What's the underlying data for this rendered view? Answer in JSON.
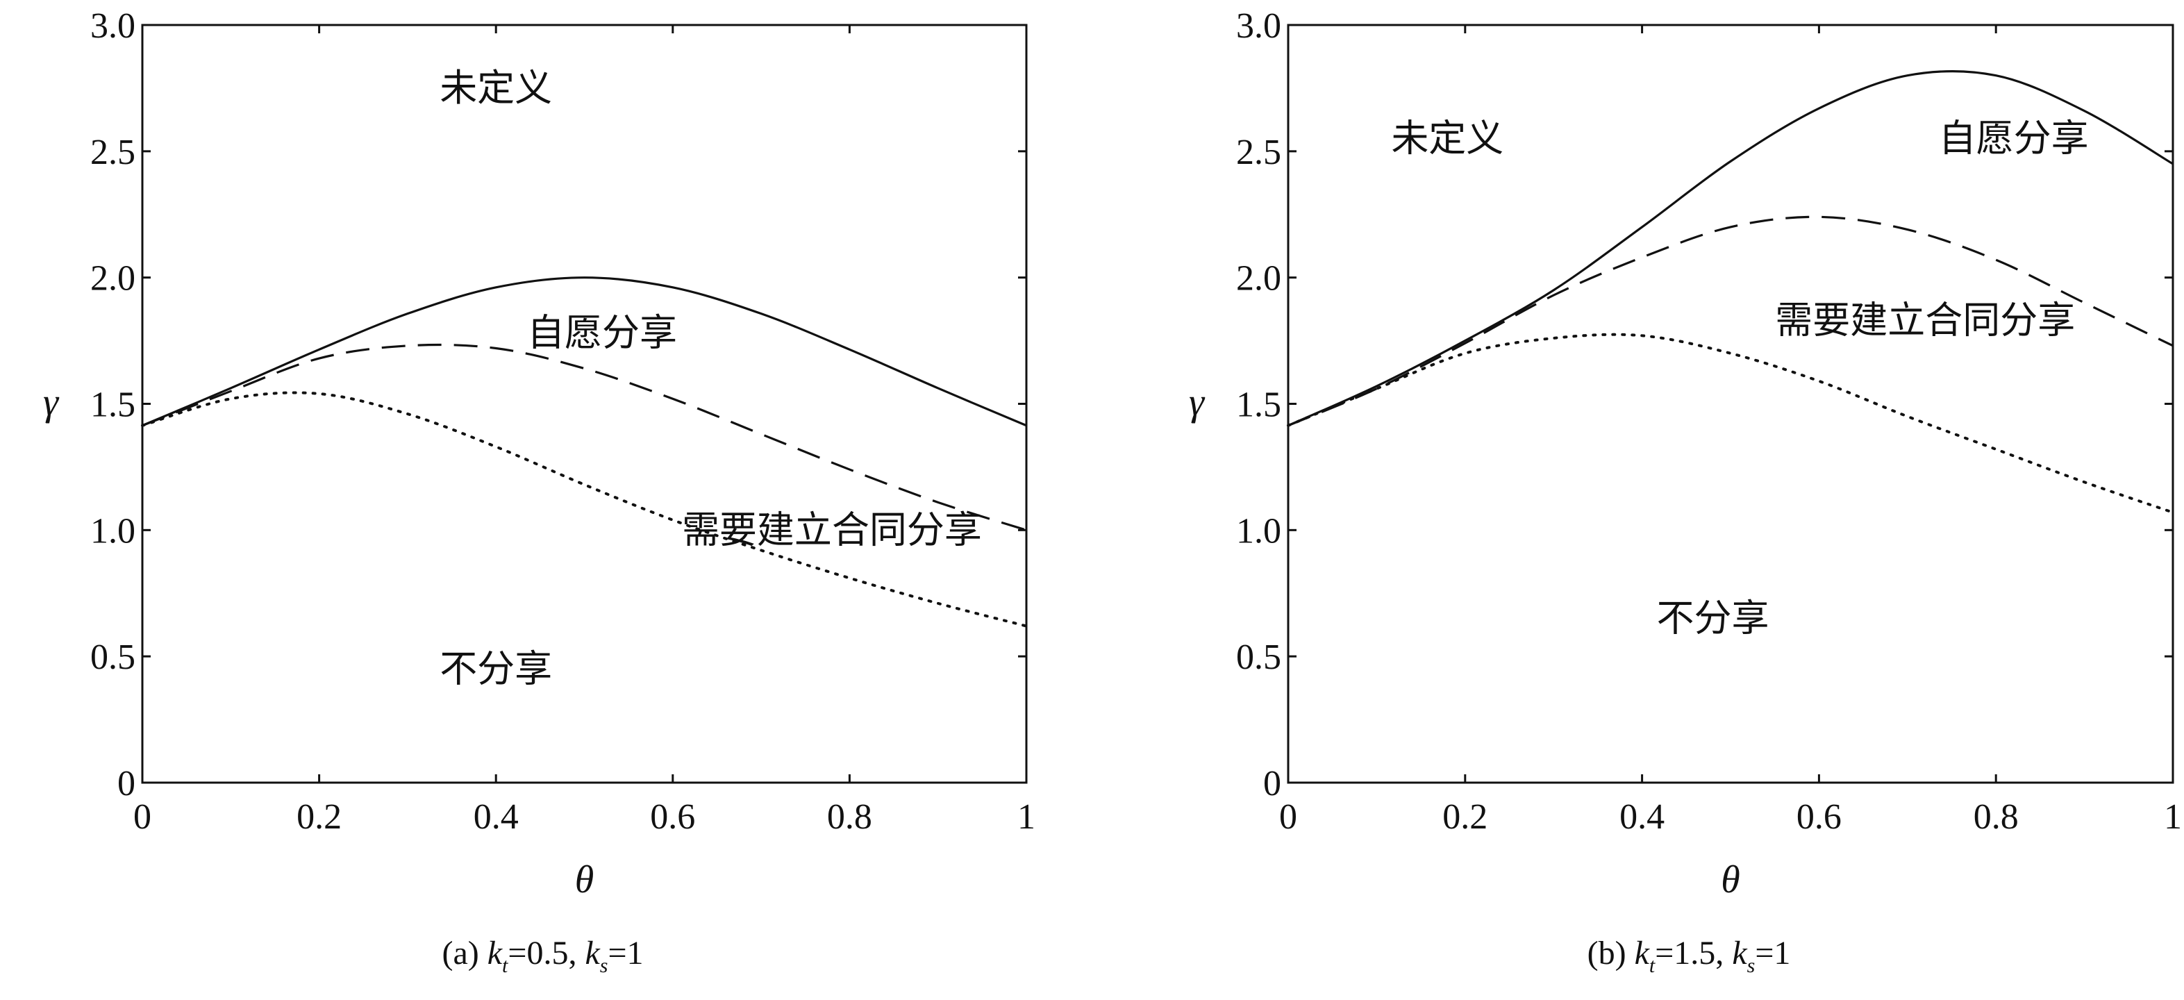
{
  "chart_data": [
    {
      "type": "line",
      "caption": {
        "prefix": "(a) ",
        "k1": "k",
        "k1_sub": "t",
        "k1_val": "=0.5, ",
        "k2": "k",
        "k2_sub": "s",
        "k2_val": "=1"
      },
      "xlabel": "θ",
      "ylabel": "γ",
      "xlim": [
        0,
        1
      ],
      "ylim": [
        0,
        3
      ],
      "xticks": [
        "0",
        "0.2",
        "0.4",
        "0.6",
        "0.8",
        "1"
      ],
      "yticks": [
        "0",
        "0.5",
        "1.0",
        "1.5",
        "2.0",
        "2.5",
        "3.0"
      ],
      "x": [
        0,
        0.1,
        0.2,
        0.3,
        0.4,
        0.5,
        0.6,
        0.7,
        0.8,
        0.9,
        1.0
      ],
      "series": [
        {
          "name": "solid",
          "style": "solid",
          "values": [
            1.414,
            1.562,
            1.715,
            1.857,
            1.961,
            2.0,
            1.961,
            1.857,
            1.715,
            1.562,
            1.414
          ]
        },
        {
          "name": "dashed",
          "style": "dashed",
          "values": [
            1.414,
            1.55,
            1.68,
            1.73,
            1.72,
            1.64,
            1.52,
            1.38,
            1.24,
            1.11,
            1.0
          ]
        },
        {
          "name": "dotted",
          "style": "dotted",
          "values": [
            1.414,
            1.52,
            1.54,
            1.46,
            1.33,
            1.18,
            1.04,
            0.92,
            0.81,
            0.71,
            0.62
          ]
        }
      ],
      "regions": [
        "未定义",
        "自愿分享",
        "需要建立合同分享",
        "不分享"
      ]
    },
    {
      "type": "line",
      "caption": {
        "prefix": "(b) ",
        "k1": "k",
        "k1_sub": "t",
        "k1_val": "=1.5, ",
        "k2": "k",
        "k2_sub": "s",
        "k2_val": "=1"
      },
      "xlabel": "θ",
      "ylabel": "γ",
      "xlim": [
        0,
        1
      ],
      "ylim": [
        0,
        3
      ],
      "xticks": [
        "0",
        "0.2",
        "0.4",
        "0.6",
        "0.8",
        "1"
      ],
      "yticks": [
        "0",
        "0.5",
        "1.0",
        "1.5",
        "2.0",
        "2.5",
        "3.0"
      ],
      "x": [
        0,
        0.1,
        0.2,
        0.3,
        0.4,
        0.5,
        0.6,
        0.7,
        0.8,
        0.9,
        1.0
      ],
      "series": [
        {
          "name": "solid",
          "style": "solid",
          "values": [
            1.414,
            1.57,
            1.75,
            1.95,
            2.2,
            2.46,
            2.67,
            2.8,
            2.8,
            2.66,
            2.45
          ]
        },
        {
          "name": "dashed",
          "style": "dashed",
          "values": [
            1.414,
            1.56,
            1.74,
            1.93,
            2.08,
            2.2,
            2.24,
            2.19,
            2.07,
            1.9,
            1.73
          ]
        },
        {
          "name": "dotted",
          "style": "dotted",
          "values": [
            1.414,
            1.56,
            1.7,
            1.76,
            1.77,
            1.7,
            1.59,
            1.45,
            1.32,
            1.19,
            1.07
          ]
        }
      ],
      "regions": [
        "未定义",
        "自愿分享",
        "需要建立合同分享",
        "不分享"
      ]
    }
  ]
}
